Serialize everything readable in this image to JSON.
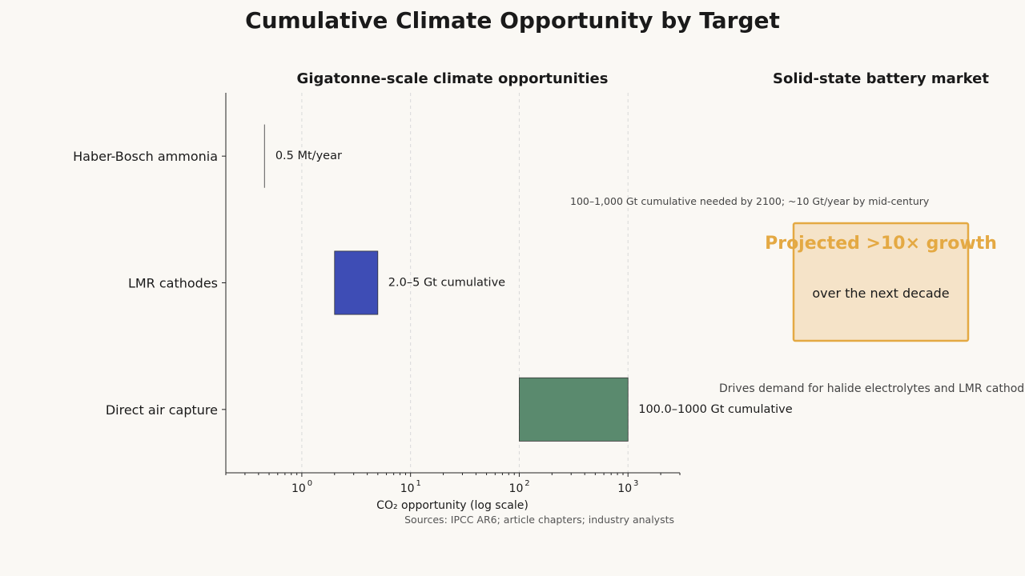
{
  "title": "Cumulative Climate Opportunity by Target",
  "chart_data": [
    {
      "type": "bar",
      "orientation": "horizontal-range",
      "title": "Gigatonne-scale climate opportunities",
      "xlabel": "CO₂ opportunity (log scale)",
      "x_scale": "log",
      "xlim": [
        0.2,
        3000
      ],
      "x_ticks": [
        {
          "base": "10",
          "exp": "0",
          "value": 1
        },
        {
          "base": "10",
          "exp": "1",
          "value": 10
        },
        {
          "base": "10",
          "exp": "2",
          "value": 100
        },
        {
          "base": "10",
          "exp": "3",
          "value": 1000
        }
      ],
      "grid": "x-dashed",
      "categories": [
        "Haber-Bosch ammonia",
        "LMR cathodes",
        "Direct air capture"
      ],
      "bars": [
        {
          "category": "Haber-Bosch ammonia",
          "low": 0.45,
          "high": 0.45,
          "label": "0.5 Mt/year",
          "color": "#5a5a5a"
        },
        {
          "category": "LMR cathodes",
          "low": 2.0,
          "high": 5.0,
          "label": "2.0–5 Gt cumulative",
          "color": "#3e4db5"
        },
        {
          "category": "Direct air capture",
          "low": 100,
          "high": 1000,
          "label": "100.0–1000 Gt cumulative",
          "color": "#5a8a6e"
        }
      ],
      "annotation": "100–1,000 Gt cumulative needed by 2100; ~10 Gt/year by mid-century",
      "source": "Sources: IPCC AR6; article chapters; industry analysts"
    },
    {
      "type": "callout",
      "title": "Solid-state battery market",
      "headline": "Projected >10× growth",
      "subline": "over the next decade",
      "note": "Drives demand for halide electrolytes and LMR cathodes",
      "accent_color": "#e4a943",
      "box_color": "#f5e3c8"
    }
  ]
}
